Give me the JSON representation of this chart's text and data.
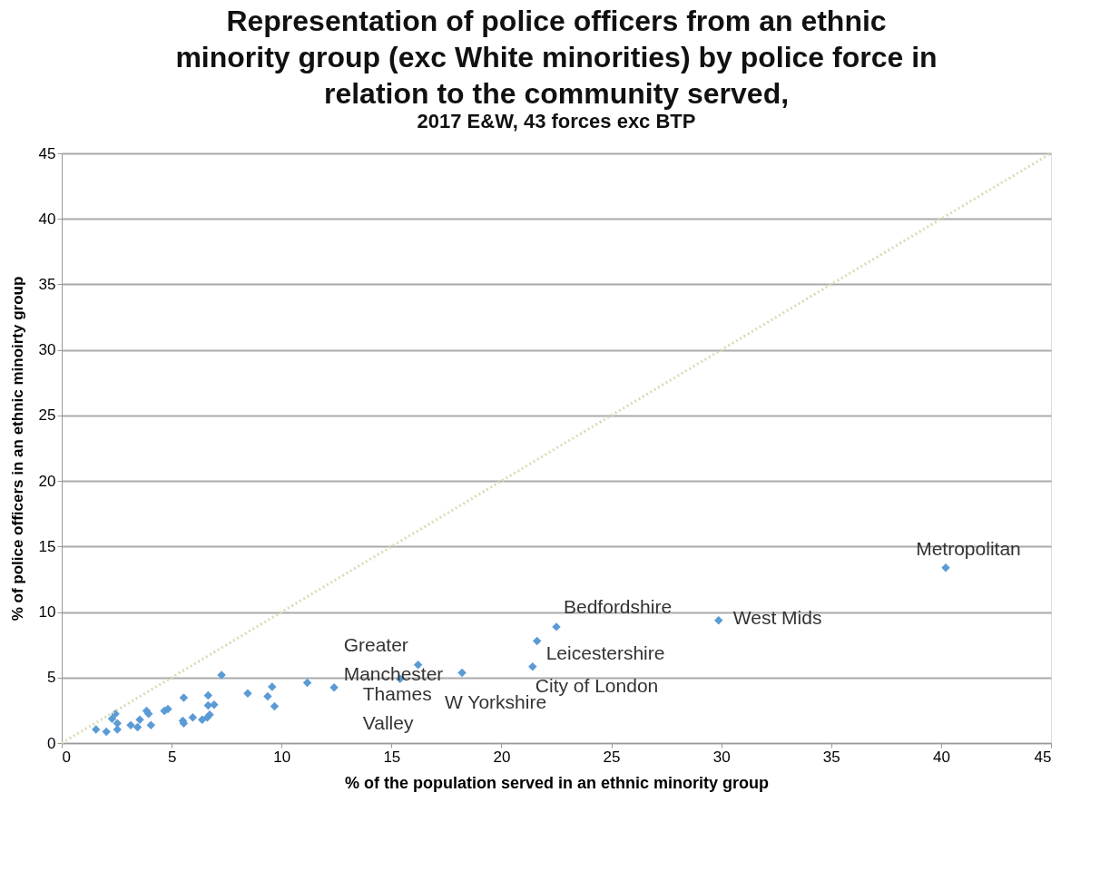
{
  "chart_data": {
    "type": "scatter",
    "title": [
      "Representation of police officers from an ethnic",
      "minority group (exc White minorities) by police force in",
      "relation to the community served,"
    ],
    "subtitle": "2017 E&W, 43 forces exc BTP",
    "xlabel": "% of the population served in an ethnic minority group",
    "ylabel": "% of police officers in an ethnic minoirty group",
    "xlim": [
      0,
      45
    ],
    "ylim": [
      0,
      45
    ],
    "xticks": [
      0,
      5,
      10,
      15,
      20,
      25,
      30,
      35,
      40,
      45
    ],
    "yticks": [
      0,
      5,
      10,
      15,
      20,
      25,
      30,
      35,
      40,
      45
    ],
    "grid": "y",
    "marker": "diamond",
    "series": [
      {
        "color": "#5b9bd5",
        "x": [
          1.56,
          2.03,
          2.44,
          2.29,
          2.53,
          2.53,
          3.14,
          3.45,
          3.55,
          3.86,
          3.95,
          4.06,
          4.67,
          4.83,
          5.55,
          5.51,
          5.55,
          5.96,
          6.39,
          6.66,
          6.66,
          6.93,
          6.73,
          6.62,
          7.27,
          8.46,
          9.37,
          9.57,
          9.68,
          11.17,
          12.39,
          15.39,
          16.21,
          18.21,
          21.42,
          21.62,
          22.5,
          29.88,
          40.21
        ],
        "values": [
          1.04,
          0.86,
          2.23,
          1.86,
          1.51,
          1.04,
          1.36,
          1.21,
          1.79,
          2.45,
          2.23,
          1.36,
          2.45,
          2.6,
          3.46,
          1.69,
          1.51,
          1.95,
          1.79,
          3.64,
          2.88,
          2.92,
          2.16,
          1.95,
          5.19,
          3.79,
          3.57,
          4.29,
          2.81,
          4.61,
          4.24,
          4.89,
          5.97,
          5.37,
          5.84,
          7.79,
          8.87,
          9.37,
          13.38
        ]
      },
      {
        "type": "line",
        "color": "#d8dcb8",
        "line_style": "dotted",
        "marker": "none",
        "x": [
          0,
          45
        ],
        "values": [
          0,
          45
        ]
      }
    ],
    "annotations": [
      {
        "text": "Metropolitan",
        "x": 40.21,
        "y": 13.38
      },
      {
        "text": "West Mids",
        "x": 29.88,
        "y": 9.37
      },
      {
        "text": "Bedfordshire",
        "x": 22.5,
        "y": 8.87
      },
      {
        "text": "Leicestershire",
        "x": 21.62,
        "y": 7.79
      },
      {
        "text": "City of London",
        "x": 21.42,
        "y": 5.84
      },
      {
        "text": "W Yorkshire",
        "x": 18.21,
        "y": 5.37
      },
      {
        "text": "Thames Valley",
        "x": 15.39,
        "y": 4.89
      },
      {
        "text": "Greater Manchester",
        "x": 16.21,
        "y": 5.97
      }
    ]
  }
}
